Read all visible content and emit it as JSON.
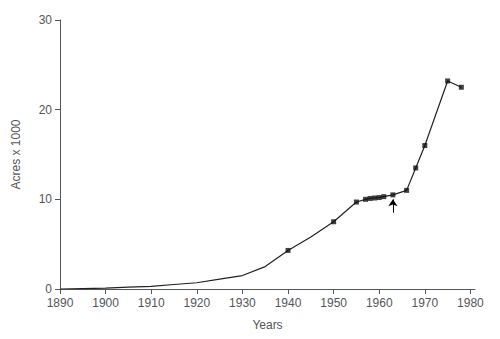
{
  "chart_data": {
    "type": "line",
    "xlabel": "Years",
    "ylabel": "Acres x 1000",
    "xlim": [
      1890,
      1981
    ],
    "xticks": [
      1890,
      1900,
      1910,
      1920,
      1930,
      1940,
      1950,
      1960,
      1970,
      1980
    ],
    "ylim": [
      0,
      30
    ],
    "yticks": [
      0,
      10,
      20,
      30
    ],
    "grid": false,
    "series": [
      {
        "type": "line",
        "color": "#222222",
        "x": [
          1890,
          1895,
          1900,
          1905,
          1910,
          1915,
          1920,
          1925,
          1930,
          1935,
          1940,
          1945,
          1950,
          1955,
          1957,
          1958,
          1959,
          1960,
          1961,
          1963,
          1966,
          1968,
          1970,
          1975,
          1978
        ],
        "values": [
          0.0,
          0.05,
          0.1,
          0.2,
          0.3,
          0.5,
          0.7,
          1.1,
          1.5,
          2.5,
          4.3,
          5.8,
          7.5,
          9.7,
          10.0,
          10.1,
          10.15,
          10.2,
          10.3,
          10.5,
          11.0,
          13.5,
          16.0,
          23.2,
          22.5
        ]
      },
      {
        "type": "scatter",
        "marker": "square",
        "color": "#111111",
        "x": [
          1940,
          1950,
          1955,
          1957,
          1958,
          1959,
          1960,
          1961,
          1963,
          1966,
          1968,
          1970,
          1975,
          1978
        ],
        "values": [
          4.3,
          7.5,
          9.7,
          10.0,
          10.1,
          10.15,
          10.2,
          10.3,
          10.5,
          11.0,
          13.5,
          16.0,
          23.2,
          22.5
        ]
      }
    ],
    "arrow": {
      "x": 1963,
      "from": 8.5,
      "to": 10.0,
      "color": "#000000"
    }
  }
}
